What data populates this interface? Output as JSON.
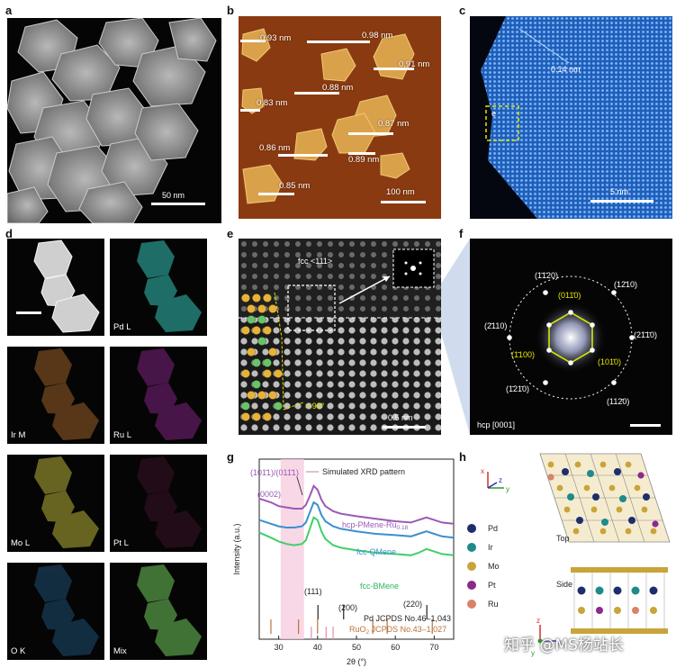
{
  "panel_labels": [
    "a",
    "b",
    "c",
    "d",
    "e",
    "f",
    "g",
    "h"
  ],
  "a": {
    "scale": "50 nm"
  },
  "b": {
    "scale": "100 nm",
    "heights": [
      "0.93 nm",
      "0.98 nm",
      "0.91 nm",
      "0.88 nm",
      "0.83 nm",
      "0.87 nm",
      "0.86 nm",
      "0.89 nm",
      "0.85 nm"
    ]
  },
  "c": {
    "spacing": "0.14 nm",
    "box_label": "e",
    "scale": "5 nm"
  },
  "d": {
    "maps": [
      "Pd L",
      "Ir M",
      "Ru L",
      "Mo L",
      "Pt L",
      "O K",
      "Mix"
    ]
  },
  "e": {
    "zone": "fcc <111>",
    "angle": "> 90°",
    "scale": "0.5 nm"
  },
  "f": {
    "zone": "hcp [0001]",
    "outer_spots": [
      "(1̄1̄20)",
      "(12̄10)",
      "(2̄110)",
      "(21̄1̄0)",
      "(1̄21̄0)",
      "(112̄0)"
    ],
    "inner_spots": [
      "(011̄0)",
      "(1̄100)",
      "(101̄0)"
    ]
  },
  "g": {
    "legend": "Simulated XRD pattern",
    "peak_upper": "(101̄1)/(011̄1)",
    "peak_lower": "(0002)",
    "curves": [
      "hcp-PMene-Ru0.18",
      "fcc-QMene",
      "fcc-BMene"
    ],
    "curve_sub": "0.18",
    "curve_main": "hcp-PMene-Ru",
    "peak_111": "(111)",
    "peak_200": "(200)",
    "peak_220": "(220)",
    "ref_pd": "Pd JCPDS No.46–1,043",
    "ref_ruo2_a": "RuO",
    "ref_ruo2_sub": "2",
    "ref_ruo2_b": " JCPDS No.43–1,027",
    "ylabel": "Intensity (a.u.)",
    "xlabel": "2θ (°)",
    "xticks": [
      "30",
      "40",
      "50",
      "60",
      "70"
    ]
  },
  "h": {
    "legend": [
      "Pd",
      "Ir",
      "Mo",
      "Pt",
      "Ru"
    ],
    "legend_colors": [
      "#1d2e6b",
      "#1f8a8a",
      "#c9a43a",
      "#8a2a8a",
      "#d8826a"
    ],
    "views": [
      "Top",
      "Side"
    ],
    "axes": [
      "x",
      "y",
      "z"
    ]
  },
  "watermark": "知乎 @MS杨站长",
  "chart_data": {
    "type": "line",
    "xlabel": "2θ (°)",
    "ylabel": "Intensity (a.u.)",
    "xlim": [
      25,
      75
    ],
    "xticks": [
      30,
      40,
      50,
      60,
      70
    ],
    "series": [
      {
        "name": "hcp-PMene-Ru0.18",
        "color": "#9b59b6",
        "x": [
          25,
          28,
          30,
          32,
          34,
          36,
          37,
          38,
          39,
          40,
          41,
          42,
          44,
          46,
          50,
          55,
          60,
          64,
          66,
          68,
          70,
          72,
          75
        ],
        "y": [
          0.83,
          0.8,
          0.77,
          0.76,
          0.75,
          0.75,
          0.78,
          0.85,
          0.93,
          0.9,
          0.82,
          0.77,
          0.73,
          0.71,
          0.69,
          0.67,
          0.65,
          0.64,
          0.66,
          0.68,
          0.66,
          0.64,
          0.63
        ]
      },
      {
        "name": "fcc-QMene",
        "color": "#3b8fd1",
        "x": [
          25,
          28,
          30,
          32,
          34,
          36,
          37,
          38,
          39,
          40,
          41,
          42,
          44,
          46,
          50,
          55,
          60,
          64,
          66,
          68,
          70,
          72,
          75
        ],
        "y": [
          0.66,
          0.63,
          0.61,
          0.6,
          0.6,
          0.61,
          0.64,
          0.72,
          0.8,
          0.78,
          0.7,
          0.65,
          0.61,
          0.59,
          0.57,
          0.55,
          0.54,
          0.53,
          0.55,
          0.57,
          0.55,
          0.53,
          0.52
        ]
      },
      {
        "name": "fcc-BMene",
        "color": "#3fcf6a",
        "x": [
          25,
          28,
          30,
          32,
          34,
          36,
          37,
          38,
          39,
          40,
          41,
          42,
          44,
          46,
          50,
          55,
          60,
          64,
          66,
          68,
          70,
          72,
          75
        ],
        "y": [
          0.56,
          0.52,
          0.49,
          0.47,
          0.46,
          0.47,
          0.5,
          0.59,
          0.68,
          0.66,
          0.57,
          0.51,
          0.46,
          0.44,
          0.42,
          0.4,
          0.39,
          0.38,
          0.4,
          0.43,
          0.41,
          0.39,
          0.38
        ]
      }
    ],
    "references": [
      {
        "name": "Pd JCPDS No.46–1,043",
        "color": "#222222",
        "peaks": [
          40.1,
          46.7,
          68.1
        ]
      },
      {
        "name": "RuO2 JCPDS No.43–1,027",
        "color": "#b8733a",
        "peaks": [
          28.0,
          35.1,
          40.0,
          54.2,
          57.9,
          69.5
        ]
      },
      {
        "name": "Simulated XRD pattern",
        "color": "#e090b0",
        "peaks": [
          38.4,
          42.2,
          44.0
        ]
      }
    ]
  }
}
